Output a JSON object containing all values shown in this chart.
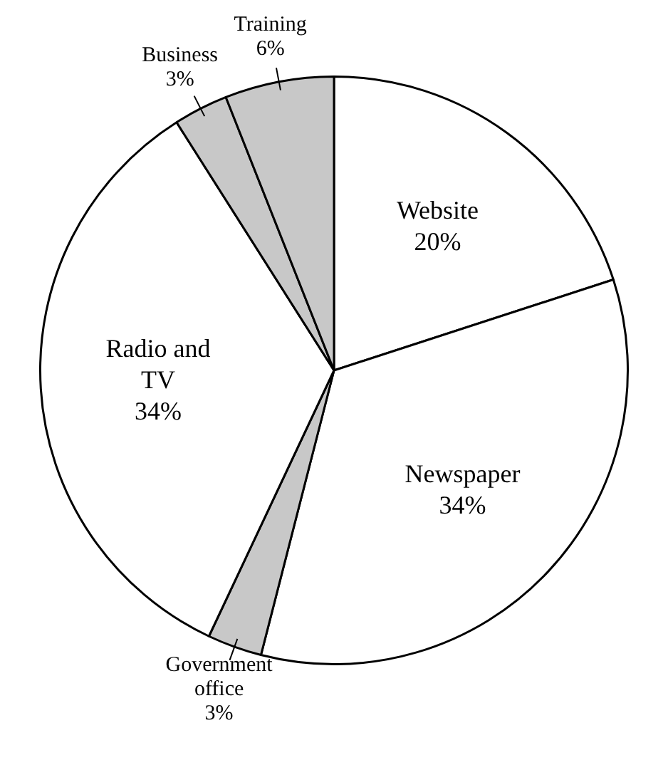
{
  "chart_data": {
    "type": "pie",
    "categories": [
      "Website",
      "Newspaper",
      "Government office",
      "Radio and TV",
      "Business",
      "Training"
    ],
    "values": [
      20,
      34,
      3,
      34,
      3,
      6
    ],
    "value_labels": [
      "20%",
      "34%",
      "3%",
      "34%",
      "3%",
      "6%"
    ],
    "colors": [
      "#ffffff",
      "#ffffff",
      "#c8c8c8",
      "#ffffff",
      "#c8c8c8",
      "#c8c8c8"
    ],
    "legend": false
  }
}
